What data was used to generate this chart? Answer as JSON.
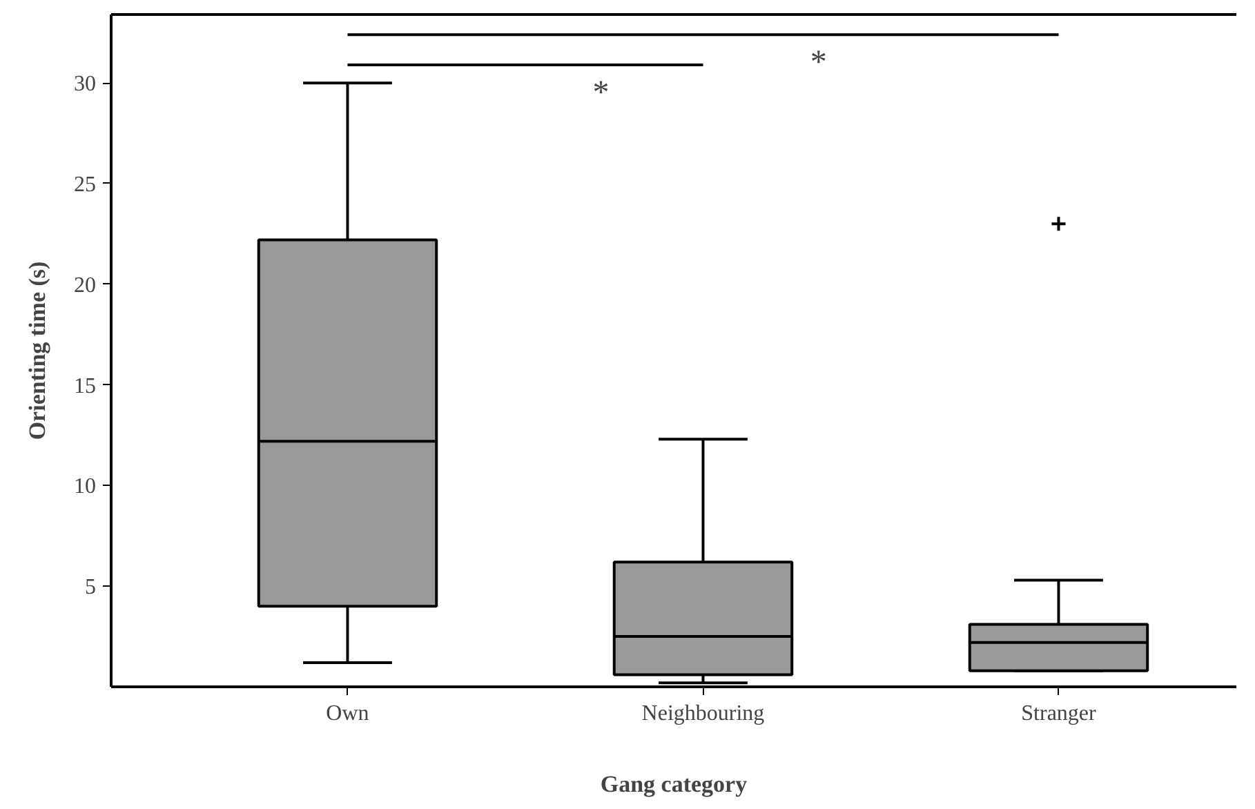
{
  "chart_data": {
    "type": "box",
    "xlabel": "Gang category",
    "ylabel": "Orienting time (s)",
    "categories": [
      "Own",
      "Neighbouring",
      "Stranger"
    ],
    "series": [
      {
        "color": "#999999",
        "boxes": [
          {
            "low": 1.2,
            "q1": 4.0,
            "median": 12.2,
            "q3": 22.2,
            "high": 30.0
          },
          {
            "low": 0.2,
            "q1": 0.6,
            "median": 2.5,
            "q3": 6.2,
            "high": 12.3
          },
          {
            "low": 0.8,
            "q1": 0.8,
            "median": 2.2,
            "q3": 3.1,
            "high": 5.3,
            "outliers": [
              23.0
            ]
          }
        ]
      }
    ],
    "ylim": [
      0,
      33.4
    ],
    "yticks": [
      5,
      10,
      15,
      20,
      25,
      30
    ],
    "grid": false,
    "annotations": [
      "*",
      "*"
    ]
  }
}
